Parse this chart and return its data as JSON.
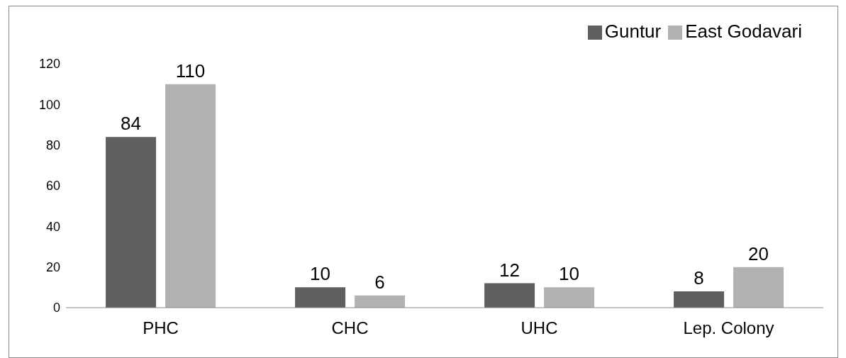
{
  "chart_data": {
    "type": "bar",
    "categories": [
      "PHC",
      "CHC",
      "UHC",
      "Lep. Colony"
    ],
    "series": [
      {
        "name": "Guntur",
        "color": "#5f5f5f",
        "values": [
          84,
          10,
          12,
          8
        ]
      },
      {
        "name": "East Godavari",
        "color": "#b2b2b2",
        "values": [
          110,
          6,
          10,
          20
        ]
      }
    ],
    "ylim": [
      0,
      120
    ],
    "yticks": [
      0,
      20,
      40,
      60,
      80,
      100,
      120
    ],
    "grid": false,
    "legend": "top right",
    "data_labels": true
  }
}
